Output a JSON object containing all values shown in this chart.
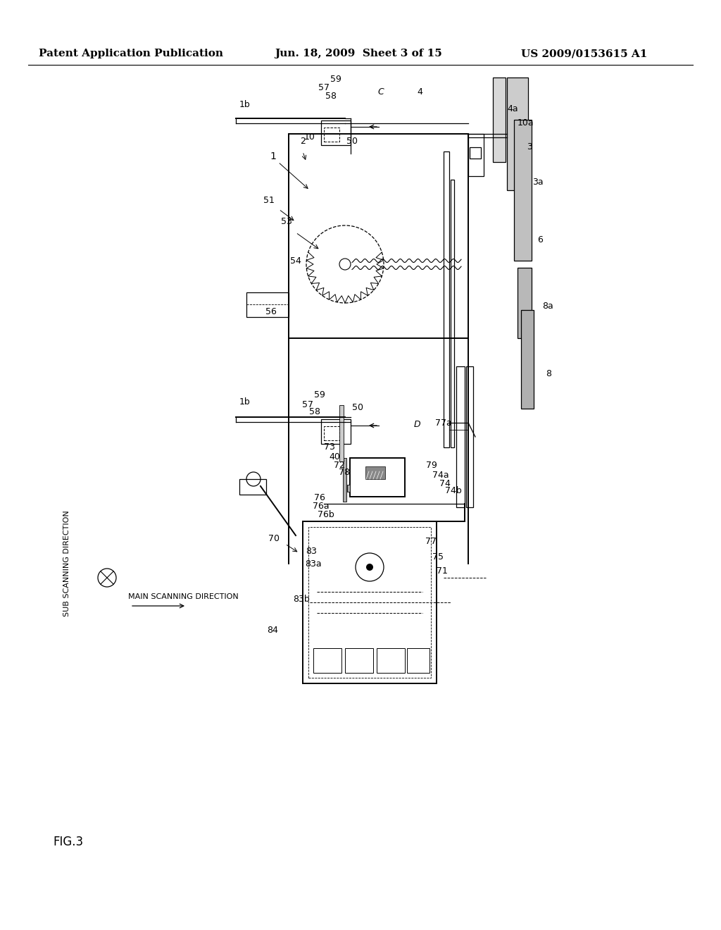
{
  "bg_color": "#ffffff",
  "header_left": "Patent Application Publication",
  "header_mid": "Jun. 18, 2009  Sheet 3 of 15",
  "header_right": "US 2009/0153615 A1",
  "fig_label": "FIG.3",
  "title_fontsize": 11,
  "label_fontsize": 9
}
